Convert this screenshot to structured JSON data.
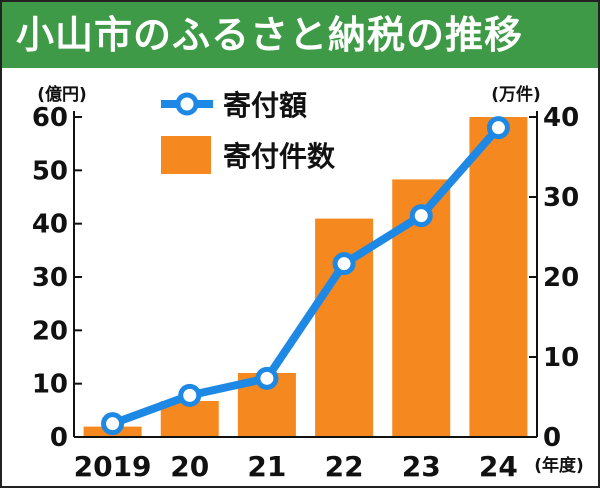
{
  "title": "小山市のふるさと納税の推移",
  "colors": {
    "title_bg": "#3e9a46",
    "bar": "#f5891f",
    "line": "#1e88e5",
    "marker_fill": "#ffffff"
  },
  "chart_data": {
    "type": "bar",
    "categories": [
      "2019",
      "20",
      "21",
      "22",
      "23",
      "24"
    ],
    "xlabel": "(年度)",
    "series": [
      {
        "name": "寄付件数",
        "type": "bar",
        "axis": "right",
        "values": [
          1.3,
          4.5,
          8.0,
          27.3,
          32.2,
          40.0
        ]
      },
      {
        "name": "寄付額",
        "type": "line",
        "axis": "left",
        "values": [
          2.5,
          7.8,
          11.0,
          32.5,
          41.5,
          58.0
        ]
      }
    ],
    "y_left": {
      "label": "(億円)",
      "lim": [
        0,
        60
      ],
      "ticks": [
        0,
        10,
        20,
        30,
        40,
        50,
        60
      ]
    },
    "y_right": {
      "label": "(万件)",
      "lim": [
        0,
        40
      ],
      "ticks": [
        0,
        10,
        20,
        30,
        40
      ]
    },
    "legend": {
      "placement": "top-left"
    },
    "grid": false
  }
}
